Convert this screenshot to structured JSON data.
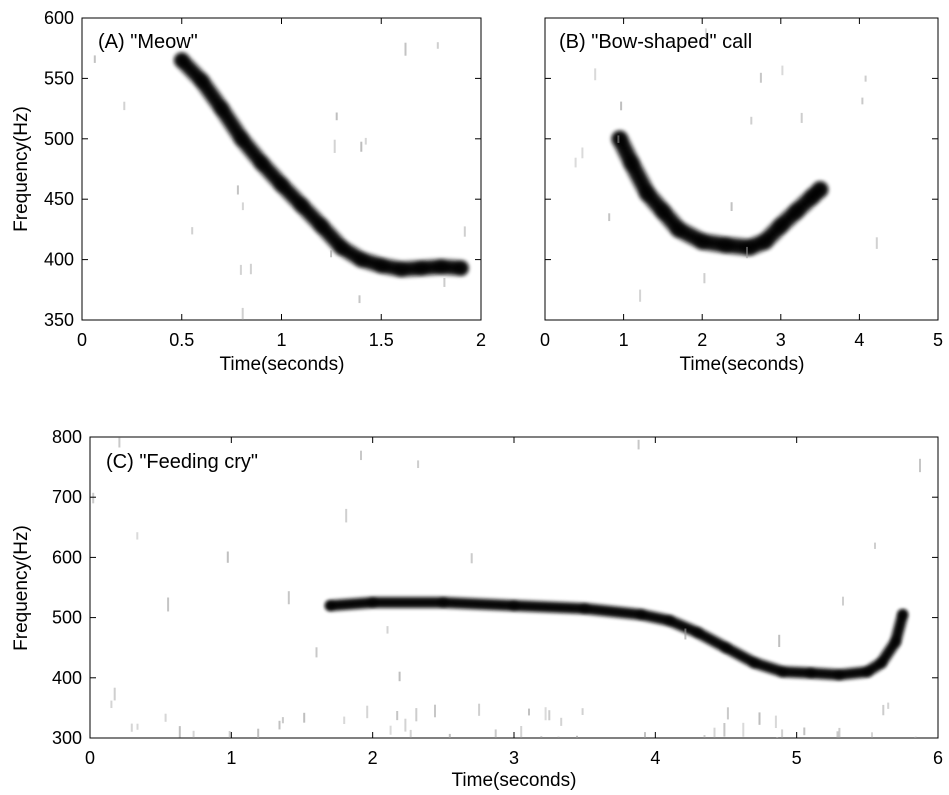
{
  "chart_data": [
    {
      "type": "spectrogram",
      "title": "(A) \"Meow\"",
      "xlabel": "Time(seconds)",
      "ylabel": "Frequency(Hz)",
      "xlim": [
        0,
        2
      ],
      "ylim": [
        350,
        600
      ],
      "xticks": [
        "0",
        "0.5",
        "1",
        "1.5",
        "2"
      ],
      "yticks": [
        "350",
        "400",
        "450",
        "500",
        "550",
        "600"
      ],
      "series": [
        {
          "values": [
            [
              0.5,
              565
            ],
            [
              0.6,
              548
            ],
            [
              0.7,
              525
            ],
            [
              0.8,
              500
            ],
            [
              0.9,
              480
            ],
            [
              1.0,
              462
            ],
            [
              1.1,
              445
            ],
            [
              1.2,
              428
            ],
            [
              1.3,
              410
            ],
            [
              1.4,
              400
            ],
            [
              1.5,
              395
            ],
            [
              1.6,
              392
            ],
            [
              1.7,
              393
            ],
            [
              1.8,
              394
            ],
            [
              1.9,
              393
            ]
          ]
        }
      ]
    },
    {
      "type": "spectrogram",
      "title": "(B) \"Bow-shaped\" call",
      "xlabel": "Time(seconds)",
      "ylabel": "",
      "xlim": [
        0,
        5
      ],
      "ylim": [
        350,
        600
      ],
      "xticks": [
        "0",
        "1",
        "2",
        "3",
        "4",
        "5"
      ],
      "yticks": [
        "",
        "",
        "",
        "",
        "",
        ""
      ],
      "series": [
        {
          "values": [
            [
              0.95,
              500
            ],
            [
              1.1,
              480
            ],
            [
              1.3,
              455
            ],
            [
              1.5,
              440
            ],
            [
              1.7,
              425
            ],
            [
              2.0,
              415
            ],
            [
              2.3,
              412
            ],
            [
              2.6,
              410
            ],
            [
              2.8,
              415
            ],
            [
              3.0,
              428
            ],
            [
              3.2,
              440
            ],
            [
              3.4,
              452
            ],
            [
              3.5,
              458
            ]
          ]
        }
      ]
    },
    {
      "type": "spectrogram",
      "title": "(C) \"Feeding cry\"",
      "xlabel": "Time(seconds)",
      "ylabel": "Frequency(Hz)",
      "xlim": [
        0,
        6
      ],
      "ylim": [
        300,
        800
      ],
      "xticks": [
        "0",
        "1",
        "2",
        "3",
        "4",
        "5",
        "6"
      ],
      "yticks": [
        "300",
        "400",
        "500",
        "600",
        "700",
        "800"
      ],
      "series": [
        {
          "values": [
            [
              1.7,
              520
            ],
            [
              2.0,
              525
            ],
            [
              2.5,
              525
            ],
            [
              3.0,
              520
            ],
            [
              3.5,
              515
            ],
            [
              3.9,
              505
            ],
            [
              4.1,
              495
            ],
            [
              4.3,
              475
            ],
            [
              4.5,
              450
            ],
            [
              4.7,
              425
            ],
            [
              4.9,
              410
            ],
            [
              5.1,
              408
            ],
            [
              5.3,
              405
            ],
            [
              5.5,
              410
            ],
            [
              5.6,
              425
            ],
            [
              5.7,
              460
            ],
            [
              5.75,
              505
            ]
          ]
        }
      ]
    }
  ]
}
